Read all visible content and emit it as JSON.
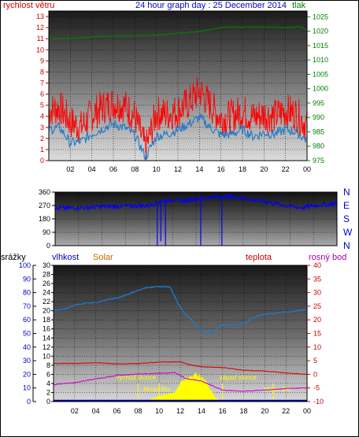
{
  "header": {
    "wind_label": "rychlost větru",
    "title": "24 hour graph day : 25 December 2014",
    "pressure_label": "tlak"
  },
  "labels": {
    "rain": "srážky",
    "humidity": "vlhkost",
    "solar": "Solar",
    "temperature": "teplota",
    "dewpoint": "rosný bod",
    "sunrise": "východ slunce",
    "sunset": "západ slunce",
    "moonrise": "Moon Ris",
    "moonset": "Moon Set"
  },
  "colors": {
    "wind_gust": "#ff0000",
    "wind_avg": "#1e78c8",
    "pressure": "#008000",
    "direction": "#0000ff",
    "humidity": "#1e78c8",
    "temperature": "#dc0000",
    "dewpoint": "#d000d0",
    "solar": "#ffff00",
    "rain": "#0000a0",
    "label_red": "#cc0000",
    "label_green": "#008000",
    "label_blue": "#0000cc",
    "label_orange": "#cc6600",
    "label_magenta": "#aa00aa"
  },
  "chart_data": [
    {
      "type": "line",
      "panel": "wind and pressure",
      "x_ticks": [
        "02",
        "04",
        "06",
        "08",
        "10",
        "12",
        "14",
        "16",
        "18",
        "20",
        "22",
        "00"
      ],
      "y_left_ticks": [
        0,
        1,
        2,
        3,
        4,
        5,
        6,
        7,
        8,
        9,
        10,
        11,
        12,
        13
      ],
      "y_left_range": [
        0,
        13.5
      ],
      "y_right_ticks": [
        975,
        980,
        985,
        990,
        995,
        1000,
        1005,
        1010,
        1015,
        1020,
        1025
      ],
      "y_right_range": [
        975,
        1027
      ],
      "series": [
        {
          "name": "rychlost větru",
          "role": "gust",
          "x": [
            0,
            1,
            2,
            3,
            4,
            5,
            6,
            7,
            8,
            9,
            10,
            11,
            12,
            13,
            14,
            15,
            16,
            17,
            18,
            19,
            20,
            21,
            22,
            23,
            24
          ],
          "y": [
            4.5,
            4.8,
            3.5,
            3.0,
            4.2,
            4.8,
            5.2,
            5.0,
            4.0,
            1.0,
            4.3,
            4.2,
            4.5,
            5.2,
            6.3,
            5.0,
            3.8,
            4.0,
            4.5,
            3.9,
            4.2,
            4.0,
            4.5,
            4.2,
            3.2
          ]
        },
        {
          "name": "rychlost větru",
          "role": "average",
          "x": [
            0,
            1,
            2,
            3,
            4,
            5,
            6,
            7,
            8,
            9,
            10,
            11,
            12,
            13,
            14,
            15,
            16,
            17,
            18,
            19,
            20,
            21,
            22,
            23,
            24
          ],
          "y": [
            2.8,
            3.0,
            1.6,
            1.7,
            2.4,
            2.9,
            3.3,
            3.0,
            2.3,
            0.3,
            2.2,
            2.4,
            2.8,
            3.3,
            3.9,
            3.0,
            2.3,
            2.4,
            2.8,
            2.2,
            2.5,
            2.4,
            2.8,
            2.6,
            1.8
          ]
        },
        {
          "name": "tlak",
          "x": [
            0,
            2,
            4,
            6,
            8,
            10,
            12,
            14,
            16,
            18,
            20,
            22,
            23.5,
            24
          ],
          "y": [
            1017.5,
            1017.4,
            1018.0,
            1018.3,
            1018.4,
            1018.6,
            1019.3,
            1019.9,
            1021.3,
            1021.4,
            1021.4,
            1021.3,
            1021.5,
            1020.4
          ]
        }
      ]
    },
    {
      "type": "line",
      "panel": "wind direction",
      "x_range": [
        0,
        24
      ],
      "y_ticks": [
        0,
        90,
        180,
        270,
        360
      ],
      "y_right_labels": [
        "N",
        "W",
        "S",
        "E",
        "N"
      ],
      "y_range": [
        0,
        360
      ],
      "series": [
        {
          "name": "wind direction",
          "x": [
            0,
            2,
            4,
            6,
            8,
            9,
            10,
            11,
            12,
            13,
            14,
            15,
            16,
            17,
            18,
            19,
            20,
            21,
            22,
            23,
            24
          ],
          "y": [
            250,
            255,
            262,
            265,
            270,
            300,
            310,
            300,
            315,
            325,
            330,
            330,
            320,
            305,
            295,
            280,
            265,
            255,
            270,
            275,
            285
          ]
        },
        {
          "name": "direction drops",
          "x": [
            8.7,
            9.0,
            9.4,
            12.4,
            14.2
          ],
          "y": [
            0,
            30,
            0,
            0,
            0
          ]
        }
      ]
    },
    {
      "type": "line",
      "panel": "rain humidity solar temperature dewpoint",
      "x_ticks": [
        "02",
        "04",
        "06",
        "08",
        "10",
        "12",
        "14",
        "16",
        "18",
        "20",
        "22",
        "00"
      ],
      "y_rain_ticks": [
        0,
        10,
        20,
        30,
        40,
        50,
        60,
        70,
        80,
        90,
        100
      ],
      "y_rain_range": [
        0,
        100
      ],
      "y_humidity_ticks": [
        0,
        2,
        4,
        6,
        8,
        10,
        12,
        14,
        16,
        18,
        20,
        22,
        24,
        26,
        28,
        30
      ],
      "y_humidity_range": [
        0,
        30
      ],
      "y_temp_ticks": [
        -10,
        -5,
        0,
        5,
        10,
        15,
        20,
        25,
        30,
        35,
        40
      ],
      "y_temp_range": [
        -10,
        40
      ],
      "series": [
        {
          "name": "vlhkost",
          "x": [
            0,
            1,
            2,
            3,
            4,
            5,
            6,
            7,
            8,
            9,
            10,
            11,
            11.8,
            12.3,
            13,
            14,
            15,
            16,
            17,
            18,
            19,
            20,
            21,
            22,
            23,
            24
          ],
          "y": [
            20.1,
            20.3,
            21.2,
            21.7,
            21.8,
            22.4,
            22.8,
            23.6,
            24.5,
            25.2,
            25.3,
            25.3,
            21.5,
            19.7,
            18.1,
            15.6,
            15.2,
            16.9,
            16.9,
            17.2,
            18.6,
            19.3,
            19.4,
            19.7,
            20.0,
            20.3
          ]
        },
        {
          "name": "teplota",
          "x": [
            0,
            2,
            4,
            6,
            8,
            10,
            12,
            13,
            14,
            16,
            18,
            20,
            22,
            24
          ],
          "y": [
            4.0,
            4.0,
            4.3,
            3.8,
            4.0,
            4.5,
            4.6,
            3.4,
            2.8,
            2.5,
            1.5,
            1.2,
            0.5,
            0.0
          ]
        },
        {
          "name": "rosný bod",
          "x": [
            0,
            2,
            4,
            6,
            8,
            10,
            11.5,
            12.5,
            14,
            16,
            18,
            20,
            22,
            24
          ],
          "y": [
            -3.8,
            -3.0,
            -1.7,
            -0.4,
            0.1,
            0.4,
            0.6,
            -1.5,
            -2.5,
            -5.8,
            -6.2,
            -5.8,
            -5.2,
            -5.0
          ]
        },
        {
          "name": "Solar",
          "x": [
            8.0,
            9.0,
            10.0,
            10.8,
            11.5,
            12.0,
            12.5,
            13.5,
            14.0,
            14.5,
            15.3,
            16.0
          ],
          "y": [
            0,
            0.3,
            1.2,
            1.6,
            2.0,
            4.0,
            5.0,
            6.0,
            5.2,
            4.0,
            0.8,
            0
          ]
        },
        {
          "name": "srážky",
          "x": [
            0,
            24
          ],
          "y": [
            0,
            0
          ]
        }
      ],
      "markers": [
        {
          "label": "východ slunce",
          "x": 8.0
        },
        {
          "label": "západ slunce",
          "x": 16.0
        },
        {
          "label": "Moon Ris",
          "x": 10.0
        },
        {
          "label": "Moon Set",
          "x": 20.8
        }
      ]
    }
  ]
}
